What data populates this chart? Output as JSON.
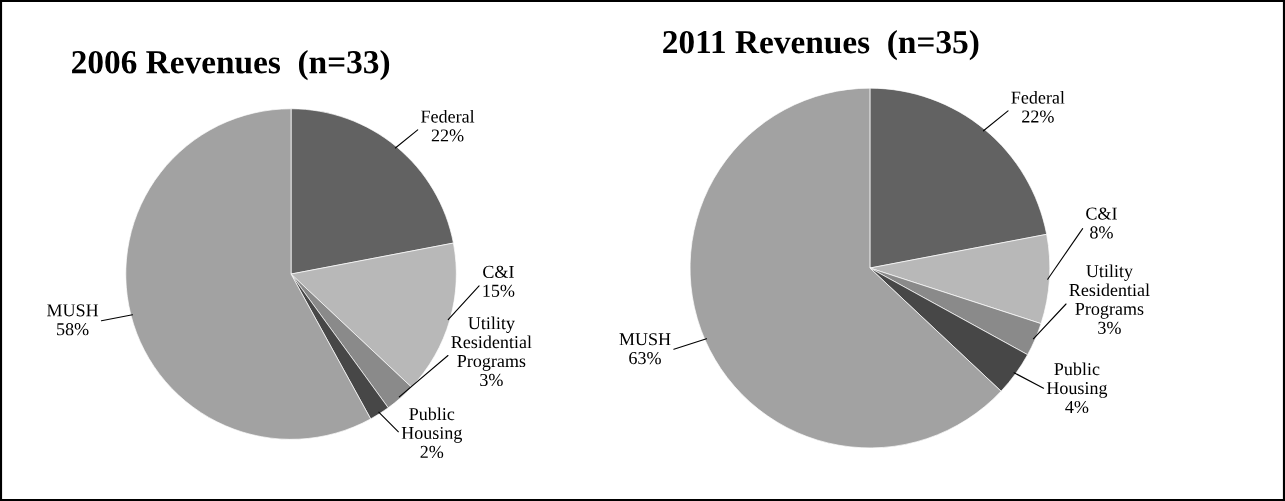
{
  "chart_data": [
    {
      "type": "pie",
      "title": "2006 Revenues  (n=33)",
      "categories": [
        "Federal",
        "C&I",
        "Utility\nResidential\nPrograms",
        "Public\nHousing",
        "MUSH"
      ],
      "values": [
        22,
        15,
        3,
        2,
        58
      ],
      "value_labels": [
        "22%",
        "15%",
        "3%",
        "2%",
        "58%"
      ],
      "colors": [
        "#626262",
        "#b8b8b8",
        "#8a8a8a",
        "#474747",
        "#a2a2a2"
      ]
    },
    {
      "type": "pie",
      "title": "2011 Revenues  (n=35)",
      "categories": [
        "Federal",
        "C&I",
        "Utility\nResidential\nPrograms",
        "Public\nHousing",
        "MUSH"
      ],
      "values": [
        22,
        8,
        3,
        4,
        63
      ],
      "value_labels": [
        "22%",
        "8%",
        "3%",
        "4%",
        "63%"
      ],
      "colors": [
        "#626262",
        "#b8b8b8",
        "#8a8a8a",
        "#474747",
        "#a2a2a2"
      ]
    }
  ]
}
